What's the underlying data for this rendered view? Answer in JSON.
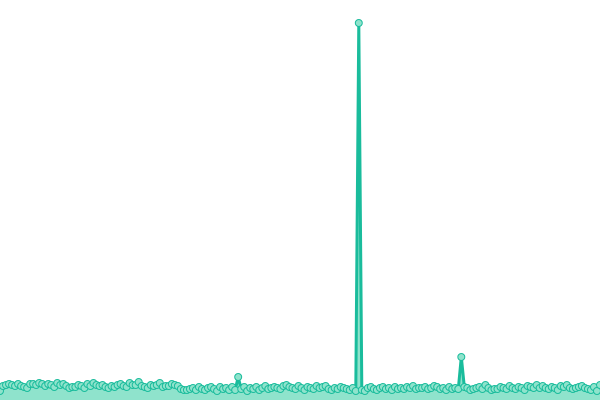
{
  "chart_data": {
    "type": "area",
    "title": "",
    "xlabel": "",
    "ylabel": "",
    "grid": false,
    "legend": "none",
    "ylim": [
      0,
      375
    ],
    "colors": {
      "line": "#1abc9c",
      "fill": "#8fe3cc",
      "marker_fill": "#8fe3cc",
      "marker_stroke": "#1abc9c"
    },
    "values": [
      7,
      12,
      13,
      14,
      13,
      12,
      14,
      12,
      11,
      10,
      14,
      14,
      13,
      15,
      14,
      12,
      14,
      13,
      11,
      15,
      13,
      14,
      12,
      10,
      11,
      11,
      13,
      12,
      10,
      14,
      12,
      15,
      13,
      12,
      13,
      11,
      10,
      12,
      11,
      13,
      14,
      12,
      11,
      15,
      13,
      13,
      16,
      12,
      11,
      10,
      13,
      12,
      13,
      15,
      11,
      12,
      12,
      14,
      13,
      12,
      9,
      8,
      8,
      9,
      10,
      8,
      11,
      9,
      8,
      10,
      11,
      9,
      7,
      11,
      9,
      10,
      8,
      11,
      8,
      21,
      9,
      11,
      7,
      10,
      9,
      11,
      8,
      10,
      12,
      9,
      10,
      11,
      10,
      9,
      12,
      13,
      11,
      10,
      9,
      12,
      10,
      8,
      11,
      10,
      9,
      12,
      10,
      11,
      12,
      9,
      8,
      10,
      9,
      11,
      10,
      9,
      8,
      10,
      7,
      375,
      8,
      7,
      10,
      11,
      9,
      8,
      10,
      11,
      9,
      10,
      8,
      11,
      9,
      10,
      9,
      11,
      10,
      12,
      9,
      10,
      10,
      11,
      9,
      10,
      12,
      11,
      9,
      10,
      8,
      11,
      9,
      10,
      9,
      41,
      11,
      10,
      8,
      9,
      10,
      11,
      9,
      13,
      10,
      8,
      9,
      9,
      11,
      10,
      9,
      12,
      10,
      9,
      11,
      10,
      8,
      12,
      11,
      10,
      13,
      10,
      12,
      10,
      9,
      11,
      10,
      8,
      12,
      11,
      13,
      10,
      9,
      10,
      11,
      12,
      10,
      9,
      8,
      11,
      7,
      13
    ]
  }
}
